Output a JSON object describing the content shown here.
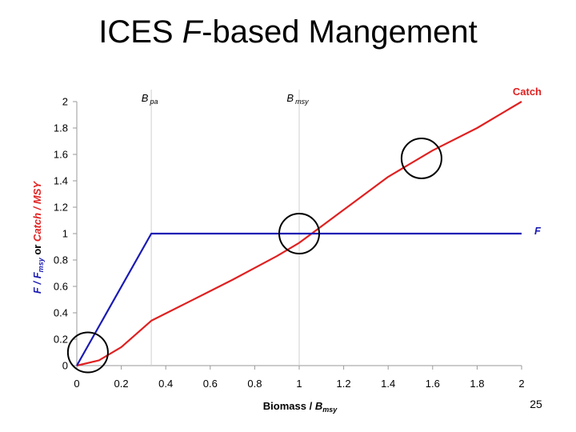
{
  "slide": {
    "title_prefix": "ICES ",
    "title_italic": "F",
    "title_suffix": "-based Mangement",
    "page_number": "25"
  },
  "chart_data": {
    "type": "line",
    "x": [
      0,
      0.1,
      0.2,
      0.335,
      0.5,
      0.7,
      0.9,
      1.0,
      1.2,
      1.4,
      1.6,
      1.8,
      2.0
    ],
    "series": [
      {
        "name": "Catch",
        "color": "#e02020",
        "values": [
          0,
          0.04,
          0.14,
          0.34,
          0.48,
          0.65,
          0.83,
          0.93,
          1.18,
          1.43,
          1.63,
          1.8,
          2.0
        ]
      },
      {
        "name": "F",
        "color": "#1a1ab4",
        "points": [
          [
            0,
            0
          ],
          [
            0.335,
            1.0
          ],
          [
            2.0,
            1.0
          ]
        ]
      }
    ],
    "xlim": [
      0,
      2
    ],
    "ylim": [
      0,
      2
    ],
    "xticks": [
      "0",
      "0.2",
      "0.4",
      "0.6",
      "0.8",
      "1",
      "1.2",
      "1.4",
      "1.6",
      "1.8",
      "2"
    ],
    "yticks": [
      "0",
      "0.2",
      "0.4",
      "0.6",
      "0.8",
      "1",
      "1.2",
      "1.4",
      "1.6",
      "1.8",
      "2"
    ],
    "xlabel": {
      "main": "Biomass / ",
      "b": "B",
      "sub": "msy"
    },
    "ylabel": {
      "f": "F",
      "slash": " / ",
      "f2": "F",
      "sub": "msy",
      "or": " or ",
      "catch": "Catch / MSY"
    },
    "reference_lines": [
      {
        "x": 0.335,
        "label_main": "B",
        "label_sub": "pa"
      },
      {
        "x": 1.0,
        "label_main": "B",
        "label_sub": "msy"
      }
    ],
    "highlight_circles": [
      {
        "x": 0.05,
        "y": 0.1
      },
      {
        "x": 1.0,
        "y": 1.0
      },
      {
        "x": 1.55,
        "y": 1.57
      }
    ],
    "grid": false,
    "legend": "inline labels at right"
  }
}
